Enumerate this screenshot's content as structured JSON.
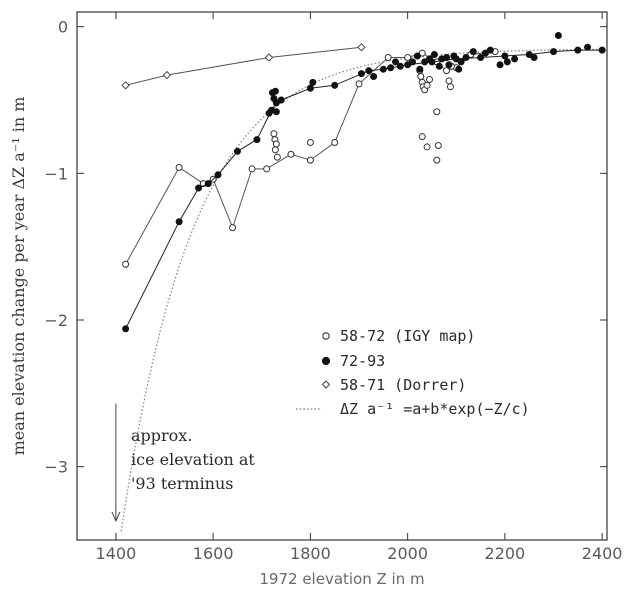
{
  "chart_data": {
    "type": "scatter",
    "xlabel": "1972 elevation Z in m",
    "ylabel": "mean elevation change per year ΔZ a⁻¹ in m",
    "xlim": [
      1320,
      2410
    ],
    "ylim": [
      -3.5,
      0.1
    ],
    "x_ticks": [
      1400,
      1600,
      1800,
      2000,
      2200,
      2400
    ],
    "y_ticks": [
      0,
      -1,
      -2,
      -3
    ],
    "legend_position": "center-right",
    "series": [
      {
        "name": "58-72 (IGY map)",
        "marker": "open-circle",
        "connected": true,
        "points": [
          [
            1420,
            -1.62
          ],
          [
            1530,
            -0.96
          ],
          [
            1580,
            -1.07
          ],
          [
            1600,
            -1.04
          ],
          [
            1640,
            -1.37
          ],
          [
            1680,
            -0.97
          ],
          [
            1710,
            -0.97
          ],
          [
            1760,
            -0.87
          ],
          [
            1800,
            -0.91
          ],
          [
            1850,
            -0.79
          ],
          [
            1900,
            -0.39
          ],
          [
            1960,
            -0.21
          ],
          [
            2000,
            -0.21
          ],
          [
            2030,
            -0.18
          ],
          [
            2060,
            -0.24
          ],
          [
            2080,
            -0.3
          ],
          [
            2100,
            -0.28
          ],
          [
            2130,
            -0.19
          ],
          [
            2180,
            -0.17
          ]
        ],
        "extra_points": [
          [
            1725,
            -0.73
          ],
          [
            1727,
            -0.77
          ],
          [
            1730,
            -0.8
          ],
          [
            1728,
            -0.84
          ],
          [
            1732,
            -0.89
          ],
          [
            1800,
            -0.79
          ],
          [
            2025,
            -0.3
          ],
          [
            2027,
            -0.34
          ],
          [
            2030,
            -0.38
          ],
          [
            2032,
            -0.41
          ],
          [
            2035,
            -0.43
          ],
          [
            2040,
            -0.4
          ],
          [
            2045,
            -0.36
          ],
          [
            2030,
            -0.75
          ],
          [
            2040,
            -0.82
          ],
          [
            2060,
            -0.58
          ],
          [
            2063,
            -0.81
          ],
          [
            2060,
            -0.91
          ],
          [
            2085,
            -0.37
          ],
          [
            2088,
            -0.41
          ],
          [
            2090,
            -0.27
          ]
        ]
      },
      {
        "name": "72-93",
        "marker": "filled-circle",
        "connected": true,
        "points": [
          [
            1420,
            -2.06
          ],
          [
            1530,
            -1.33
          ],
          [
            1570,
            -1.1
          ],
          [
            1590,
            -1.07
          ],
          [
            1610,
            -1.01
          ],
          [
            1650,
            -0.85
          ],
          [
            1690,
            -0.77
          ],
          [
            1720,
            -0.57
          ],
          [
            1730,
            -0.52
          ],
          [
            1740,
            -0.5
          ],
          [
            1800,
            -0.42
          ],
          [
            1850,
            -0.4
          ],
          [
            1920,
            -0.3
          ],
          [
            1950,
            -0.29
          ],
          [
            2000,
            -0.26
          ],
          [
            2050,
            -0.24
          ],
          [
            2100,
            -0.22
          ],
          [
            2150,
            -0.21
          ],
          [
            2200,
            -0.2
          ],
          [
            2250,
            -0.19
          ],
          [
            2300,
            -0.17
          ],
          [
            2350,
            -0.16
          ],
          [
            2400,
            -0.16
          ]
        ],
        "extra_points": [
          [
            1715,
            -0.59
          ],
          [
            1722,
            -0.45
          ],
          [
            1725,
            -0.49
          ],
          [
            1728,
            -0.44
          ],
          [
            1730,
            -0.58
          ],
          [
            1805,
            -0.38
          ],
          [
            1905,
            -0.32
          ],
          [
            1930,
            -0.34
          ],
          [
            1965,
            -0.28
          ],
          [
            1975,
            -0.24
          ],
          [
            1985,
            -0.27
          ],
          [
            2010,
            -0.24
          ],
          [
            2020,
            -0.2
          ],
          [
            2025,
            -0.29
          ],
          [
            2035,
            -0.24
          ],
          [
            2045,
            -0.22
          ],
          [
            2055,
            -0.19
          ],
          [
            2065,
            -0.27
          ],
          [
            2070,
            -0.22
          ],
          [
            2080,
            -0.21
          ],
          [
            2085,
            -0.26
          ],
          [
            2095,
            -0.2
          ],
          [
            2105,
            -0.29
          ],
          [
            2110,
            -0.24
          ],
          [
            2120,
            -0.21
          ],
          [
            2135,
            -0.17
          ],
          [
            2160,
            -0.18
          ],
          [
            2170,
            -0.16
          ],
          [
            2190,
            -0.26
          ],
          [
            2205,
            -0.24
          ],
          [
            2220,
            -0.22
          ],
          [
            2260,
            -0.21
          ],
          [
            2310,
            -0.06
          ],
          [
            2370,
            -0.14
          ]
        ]
      },
      {
        "name": "58-71 (Dorrer)",
        "marker": "open-diamond",
        "connected": true,
        "points": [
          [
            1420,
            -0.4
          ],
          [
            1505,
            -0.33
          ],
          [
            1715,
            -0.21
          ],
          [
            1905,
            -0.14
          ]
        ],
        "extra_points": []
      },
      {
        "name": "ΔZ a⁻¹ =a+b*exp(−Z/c)",
        "marker": "dotted-line",
        "fit": {
          "a": -0.15,
          "b": -40000,
          "c": 150
        },
        "x_range": [
          1320,
          2410
        ]
      }
    ]
  },
  "annotation": {
    "lines": [
      "approx.",
      "ice elevation at",
      "'93 terminus"
    ],
    "x": 1400,
    "arrow_from_y": -2.57,
    "arrow_to_y": -3.37
  }
}
